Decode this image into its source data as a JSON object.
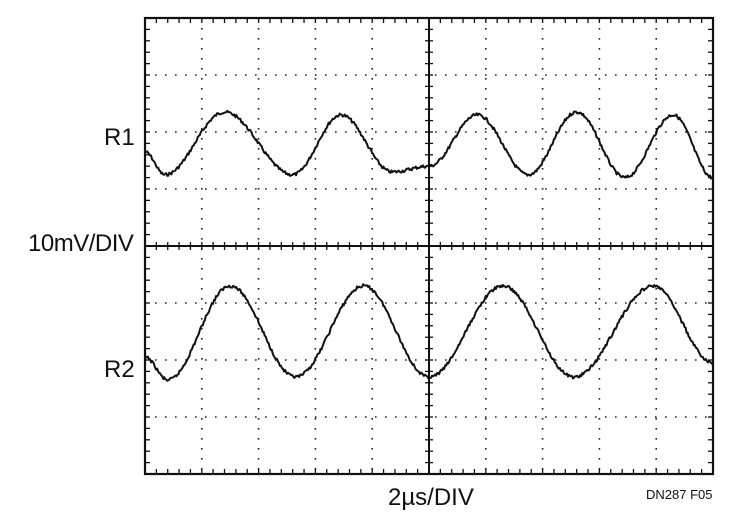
{
  "chart_data": {
    "type": "line",
    "title": "",
    "grid": true,
    "x_divisions": 10,
    "y_divisions": 8,
    "xlabel": "2µs/DIV",
    "ylabel": "10mV/DIV",
    "xlim_us": [
      0,
      20
    ],
    "series": [
      {
        "name": "R1",
        "x_us": [
          0,
          0.7,
          2.8,
          5.2,
          6.9,
          8.7,
          10.0,
          11.7,
          13.5,
          15.2,
          16.9,
          18.6,
          20.0
        ],
        "y_div": [
          -0.35,
          -0.75,
          0.35,
          -0.75,
          0.3,
          -0.7,
          -0.6,
          0.3,
          -0.75,
          0.35,
          -0.8,
          0.3,
          -0.8
        ]
      },
      {
        "name": "R2",
        "x_us": [
          0,
          0.8,
          3.0,
          5.3,
          7.7,
          10.0,
          12.6,
          15.1,
          17.9,
          20.0
        ],
        "y_div": [
          0.05,
          -0.35,
          1.3,
          -0.3,
          1.3,
          -0.3,
          1.3,
          -0.3,
          1.3,
          -0.05
        ]
      }
    ]
  },
  "labels": {
    "r1": "R1",
    "r2": "R2",
    "vertical_scale": "10mV/DIV",
    "horizontal_scale": "2µs/DIV",
    "figure_id": "DN287 F05"
  }
}
